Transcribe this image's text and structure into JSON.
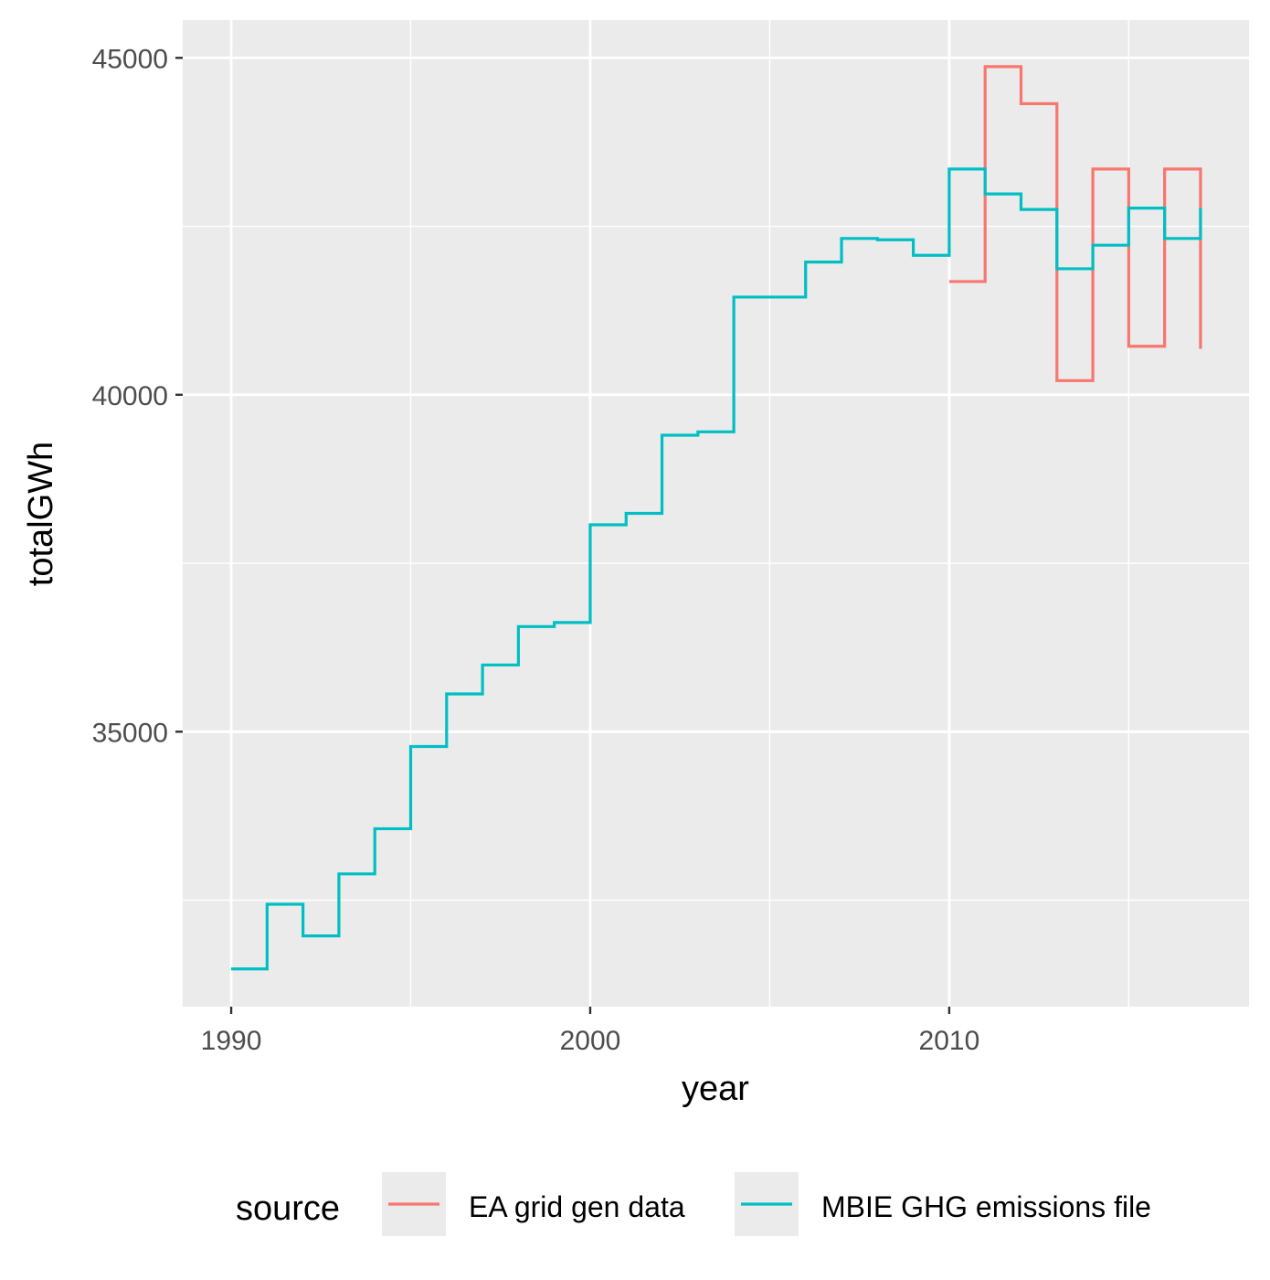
{
  "chart_data": {
    "type": "line",
    "step": "hv",
    "xlabel": "year",
    "ylabel": "totalGWh",
    "xlim": [
      1988.65,
      2018.35
    ],
    "ylim": [
      30920,
      45560
    ],
    "xticks": [
      1990,
      2000,
      2010
    ],
    "xtick_labels": [
      "1990",
      "2000",
      "2010"
    ],
    "yticks": [
      35000,
      40000,
      45000
    ],
    "ytick_labels": [
      "35000",
      "40000",
      "45000"
    ],
    "grid": true,
    "background": "#EBEBEB",
    "legend": {
      "title": "source",
      "position": "bottom"
    },
    "series": [
      {
        "name": "EA grid gen data",
        "color": "#F8766D",
        "x": [
          2010,
          2011,
          2012,
          2013,
          2014,
          2015,
          2016,
          2017
        ],
        "y": [
          41680,
          44870,
          44320,
          40210,
          43350,
          40720,
          43350,
          40680
        ]
      },
      {
        "name": "MBIE GHG emissions file",
        "color": "#00BFC4",
        "x": [
          1990,
          1991,
          1992,
          1993,
          1994,
          1995,
          1996,
          1997,
          1998,
          1999,
          2000,
          2001,
          2002,
          2003,
          2004,
          2005,
          2006,
          2007,
          2008,
          2009,
          2010,
          2011,
          2012,
          2013,
          2014,
          2015,
          2016,
          2017
        ],
        "y": [
          31480,
          32440,
          31970,
          32890,
          33560,
          34780,
          35560,
          35990,
          36560,
          36620,
          38070,
          38240,
          39400,
          39450,
          41450,
          41450,
          41970,
          42320,
          42300,
          42070,
          43350,
          42980,
          42750,
          41870,
          42220,
          42770,
          42320,
          42770
        ]
      }
    ]
  }
}
